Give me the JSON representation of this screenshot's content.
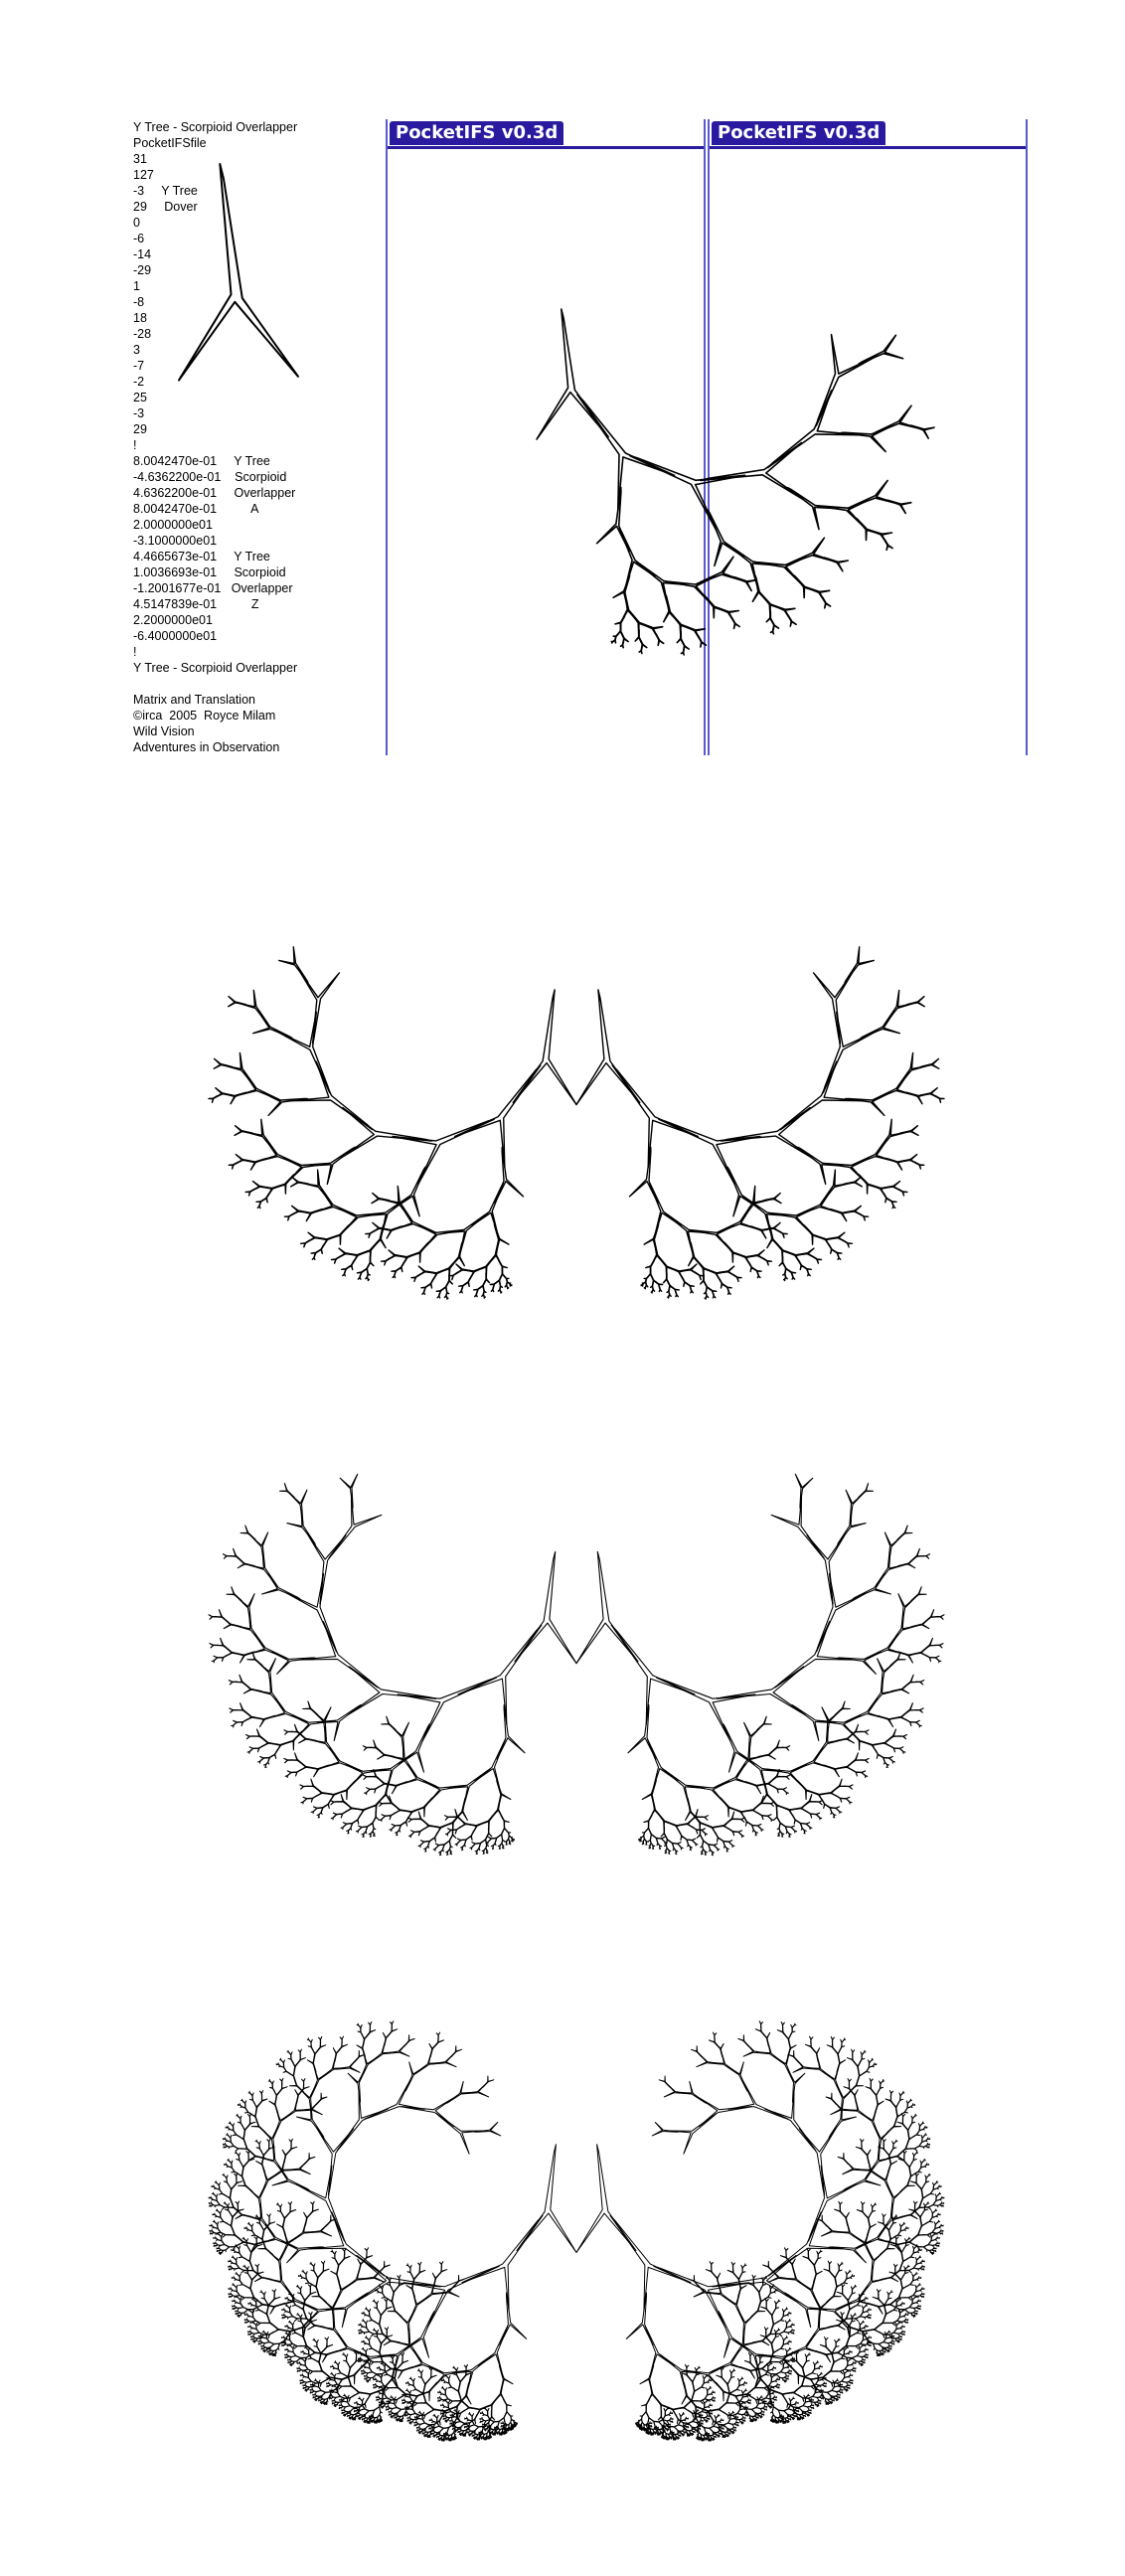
{
  "ifs_file": {
    "lines": [
      "Y Tree - Scorpioid Overlapper",
      "PocketIFSfile",
      "31",
      "127",
      "-3     Y Tree",
      "29     Dover",
      "0",
      "-6",
      "-14",
      "-29",
      "1",
      "-8",
      "18",
      "-28",
      "3",
      "-7",
      "-2",
      "25",
      "-3",
      "29",
      "!",
      "8.0042470e-01     Y Tree",
      "-4.6362200e-01    Scorpioid",
      "4.6362200e-01     Overlapper",
      "8.0042470e-01          A",
      "2.0000000e01",
      "-3.1000000e01",
      "4.4665673e-01     Y Tree",
      "1.0036693e-01     Scorpioid",
      "-1.2001677e-01   Overlapper",
      "4.5147839e-01          Z",
      "2.2000000e01",
      "-6.4000000e01",
      "!",
      "Y Tree - Scorpioid Overlapper",
      "",
      "Matrix and Translation",
      "©irca  2005  Royce Milam",
      "Wild Vision",
      "Adventures in Observation"
    ]
  },
  "windows": [
    {
      "title": "PocketIFS v0.3d"
    },
    {
      "title": "PocketIFS v0.3d"
    }
  ],
  "colors": {
    "window_border": "#5a5ad0",
    "title_bar": "#2a1aa0",
    "title_text": "#ffffff",
    "ink": "#000000"
  },
  "transforms": [
    {
      "a": 0.8004247,
      "b": -0.463622,
      "c": 0.463622,
      "d": 0.8004247,
      "e": 20,
      "f": -31
    },
    {
      "a": 0.44665673,
      "b": 0.10036693,
      "c": -0.12001677,
      "d": 0.45147839,
      "e": 22,
      "f": -64
    }
  ],
  "seed_y_tree": [
    [
      -3,
      29
    ],
    [
      0,
      -6
    ],
    [
      -14,
      -29
    ],
    [
      1,
      -8
    ],
    [
      18,
      -28
    ],
    [
      3,
      -7
    ],
    [
      -2,
      25
    ],
    [
      -3,
      29
    ]
  ],
  "renders": [
    {
      "name": "preview-small",
      "depth": 3
    },
    {
      "name": "preview-large",
      "depth": 5
    },
    {
      "name": "render-depth-7",
      "depth": 7
    },
    {
      "name": "render-depth-9",
      "depth": 9
    }
  ]
}
